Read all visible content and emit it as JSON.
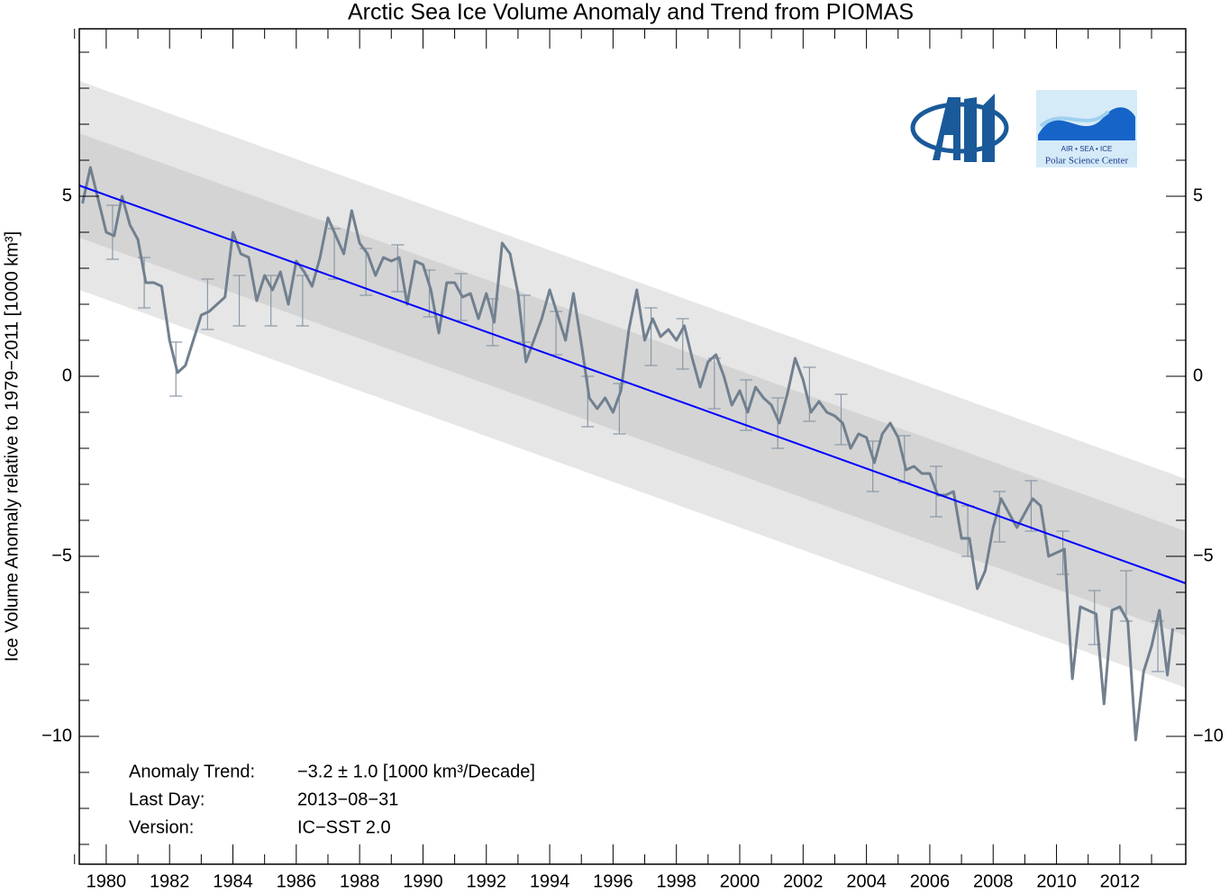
{
  "chart_data": {
    "type": "line",
    "title": "Arctic Sea Ice Volume Anomaly and Trend from PIOMAS",
    "y_label": "Ice Volume Anomaly relative to 1979−2011 [1000 km³]",
    "xlim": [
      1979.15,
      2014.08
    ],
    "ylim": [
      -13.55,
      9.65
    ],
    "xticks": [
      1980,
      1982,
      1984,
      1986,
      1988,
      1990,
      1992,
      1994,
      1996,
      1998,
      2000,
      2002,
      2004,
      2006,
      2008,
      2010,
      2012
    ],
    "xminorticks": [
      1979,
      1981,
      1983,
      1985,
      1987,
      1989,
      1991,
      1993,
      1995,
      1997,
      1999,
      2001,
      2003,
      2005,
      2007,
      2009,
      2011,
      2013
    ],
    "yticks": [
      {
        "value": -10,
        "label": "−10"
      },
      {
        "value": -5,
        "label": "−5"
      },
      0,
      5
    ],
    "yminorticks": [
      -13,
      -12,
      -11,
      -9,
      -8,
      -7,
      -6,
      -4,
      -3,
      -2,
      -1,
      1,
      2,
      3,
      4,
      6,
      7,
      8,
      9
    ],
    "series": [
      {
        "color": "#71808f",
        "x": [
          1979.25,
          1979.5,
          1979.75,
          1980,
          1980.25,
          1980.5,
          1980.75,
          1981,
          1981.25,
          1981.5,
          1981.75,
          1982,
          1982.25,
          1982.5,
          1982.75,
          1983,
          1983.25,
          1983.5,
          1983.75,
          1984,
          1984.25,
          1984.5,
          1984.75,
          1985,
          1985.25,
          1985.5,
          1985.75,
          1986,
          1986.25,
          1986.5,
          1986.75,
          1987,
          1987.25,
          1987.5,
          1987.75,
          1988,
          1988.25,
          1988.5,
          1988.75,
          1989,
          1989.25,
          1989.5,
          1989.75,
          1990,
          1990.25,
          1990.5,
          1990.75,
          1991,
          1991.25,
          1991.5,
          1991.75,
          1992,
          1992.25,
          1992.5,
          1992.75,
          1993,
          1993.25,
          1993.5,
          1993.75,
          1994,
          1994.25,
          1994.5,
          1994.75,
          1995,
          1995.25,
          1995.5,
          1995.75,
          1996,
          1996.25,
          1996.5,
          1996.75,
          1997,
          1997.25,
          1997.5,
          1997.75,
          1998,
          1998.25,
          1998.5,
          1998.75,
          1999,
          1999.25,
          1999.5,
          1999.75,
          2000,
          2000.25,
          2000.5,
          2000.75,
          2001,
          2001.25,
          2001.5,
          2001.75,
          2002,
          2002.25,
          2002.5,
          2002.75,
          2003,
          2003.25,
          2003.5,
          2003.75,
          2004,
          2004.25,
          2004.5,
          2004.75,
          2005,
          2005.25,
          2005.5,
          2005.75,
          2006,
          2006.25,
          2006.5,
          2006.75,
          2007,
          2007.25,
          2007.5,
          2007.75,
          2008,
          2008.25,
          2008.5,
          2008.75,
          2009,
          2009.25,
          2009.5,
          2009.75,
          2010,
          2010.25,
          2010.5,
          2010.75,
          2011,
          2011.25,
          2011.5,
          2011.75,
          2012,
          2012.25,
          2012.5,
          2012.75,
          2013,
          2013.25,
          2013.5,
          2013.67
        ],
        "values": [
          4.8,
          5.8,
          4.9,
          4.0,
          3.9,
          5.0,
          4.2,
          3.8,
          2.6,
          2.6,
          2.5,
          1.0,
          0.1,
          0.3,
          1.0,
          1.7,
          1.8,
          2.0,
          2.2,
          4.0,
          3.4,
          3.3,
          2.1,
          2.8,
          2.4,
          2.9,
          2.0,
          3.2,
          2.9,
          2.5,
          3.3,
          4.4,
          3.9,
          3.4,
          4.6,
          3.7,
          3.4,
          2.8,
          3.3,
          3.2,
          3.3,
          2.0,
          3.2,
          3.1,
          2.4,
          1.2,
          2.6,
          2.6,
          2.2,
          2.3,
          1.6,
          2.3,
          1.5,
          3.7,
          3.4,
          2.3,
          0.4,
          1.0,
          1.6,
          2.4,
          1.7,
          1.0,
          2.3,
          0.9,
          -0.6,
          -0.9,
          -0.6,
          -1.0,
          -0.4,
          1.3,
          2.4,
          1.0,
          1.6,
          1.1,
          1.3,
          1.0,
          1.4,
          0.5,
          -0.3,
          0.4,
          0.6,
          0.0,
          -0.8,
          -0.4,
          -1.0,
          -0.3,
          -0.6,
          -0.8,
          -1.3,
          -0.5,
          0.5,
          -0.1,
          -1.0,
          -0.7,
          -1.0,
          -1.1,
          -1.3,
          -2.0,
          -1.6,
          -1.7,
          -2.4,
          -1.6,
          -1.3,
          -1.7,
          -2.6,
          -2.5,
          -2.7,
          -2.7,
          -3.3,
          -3.3,
          -3.2,
          -4.5,
          -4.5,
          -5.9,
          -5.4,
          -4.2,
          -3.4,
          -3.8,
          -4.2,
          -3.8,
          -3.4,
          -3.6,
          -5.0,
          -4.9,
          -4.8,
          -8.4,
          -6.4,
          -6.5,
          -6.6,
          -9.1,
          -6.5,
          -6.4,
          -6.8,
          -10.1,
          -8.2,
          -7.5,
          -6.5,
          -8.3,
          -7.0
        ]
      }
    ],
    "errorbars": {
      "x": [
        1980.2,
        1981.2,
        1982.2,
        1983.2,
        1984.2,
        1985.2,
        1986.2,
        1987.2,
        1988.2,
        1989.2,
        1990.2,
        1991.2,
        1992.2,
        1993.2,
        1994.2,
        1995.2,
        1996.2,
        1997.2,
        1998.2,
        1999.2,
        2000.2,
        2001.2,
        2002.2,
        2003.2,
        2004.2,
        2005.2,
        2006.2,
        2007.2,
        2008.2,
        2009.2,
        2010.2,
        2011.2,
        2012.2,
        2013.2
      ],
      "values": [
        4.0,
        2.6,
        0.2,
        2.0,
        2.1,
        2.1,
        2.1,
        3.4,
        2.9,
        3.0,
        2.3,
        2.2,
        1.5,
        1.6,
        1.2,
        -0.7,
        -0.9,
        1.1,
        0.9,
        -0.2,
        -0.8,
        -1.3,
        -0.5,
        -1.2,
        -2.5,
        -2.3,
        -3.2,
        -4.3,
        -3.9,
        -3.6,
        -4.9,
        -6.7,
        -6.1,
        -7.5
      ],
      "errors": [
        0.75,
        0.7,
        0.75,
        0.7,
        0.7,
        0.7,
        0.7,
        0.7,
        0.65,
        0.65,
        0.65,
        0.65,
        0.65,
        0.65,
        0.6,
        0.7,
        0.7,
        0.8,
        0.7,
        0.7,
        0.7,
        0.7,
        0.75,
        0.7,
        0.7,
        0.65,
        0.7,
        0.7,
        0.7,
        0.7,
        0.6,
        0.75,
        0.7,
        0.7
      ],
      "color": "#8a98a6"
    },
    "trend": {
      "x": [
        1979.15,
        2014.08
      ],
      "values": [
        5.3,
        -5.75
      ],
      "color": "#0000ff"
    },
    "bands": {
      "inner": 1.45,
      "outer": 2.9,
      "inner_color": "#d4d4d4",
      "outer_color": "#e6e6e6"
    },
    "annotations": [
      {
        "label": "Anomaly Trend:",
        "text": "−3.2 ± 1.0 [1000 km³/Decade]"
      },
      {
        "label": "Last Day:",
        "text": "2013−08−31"
      },
      {
        "label": "Version:",
        "text": "IC−SST 2.0"
      }
    ],
    "logo_texts": [
      "AIR  •  SEA  •  ICE",
      "Polar Science Center"
    ]
  }
}
